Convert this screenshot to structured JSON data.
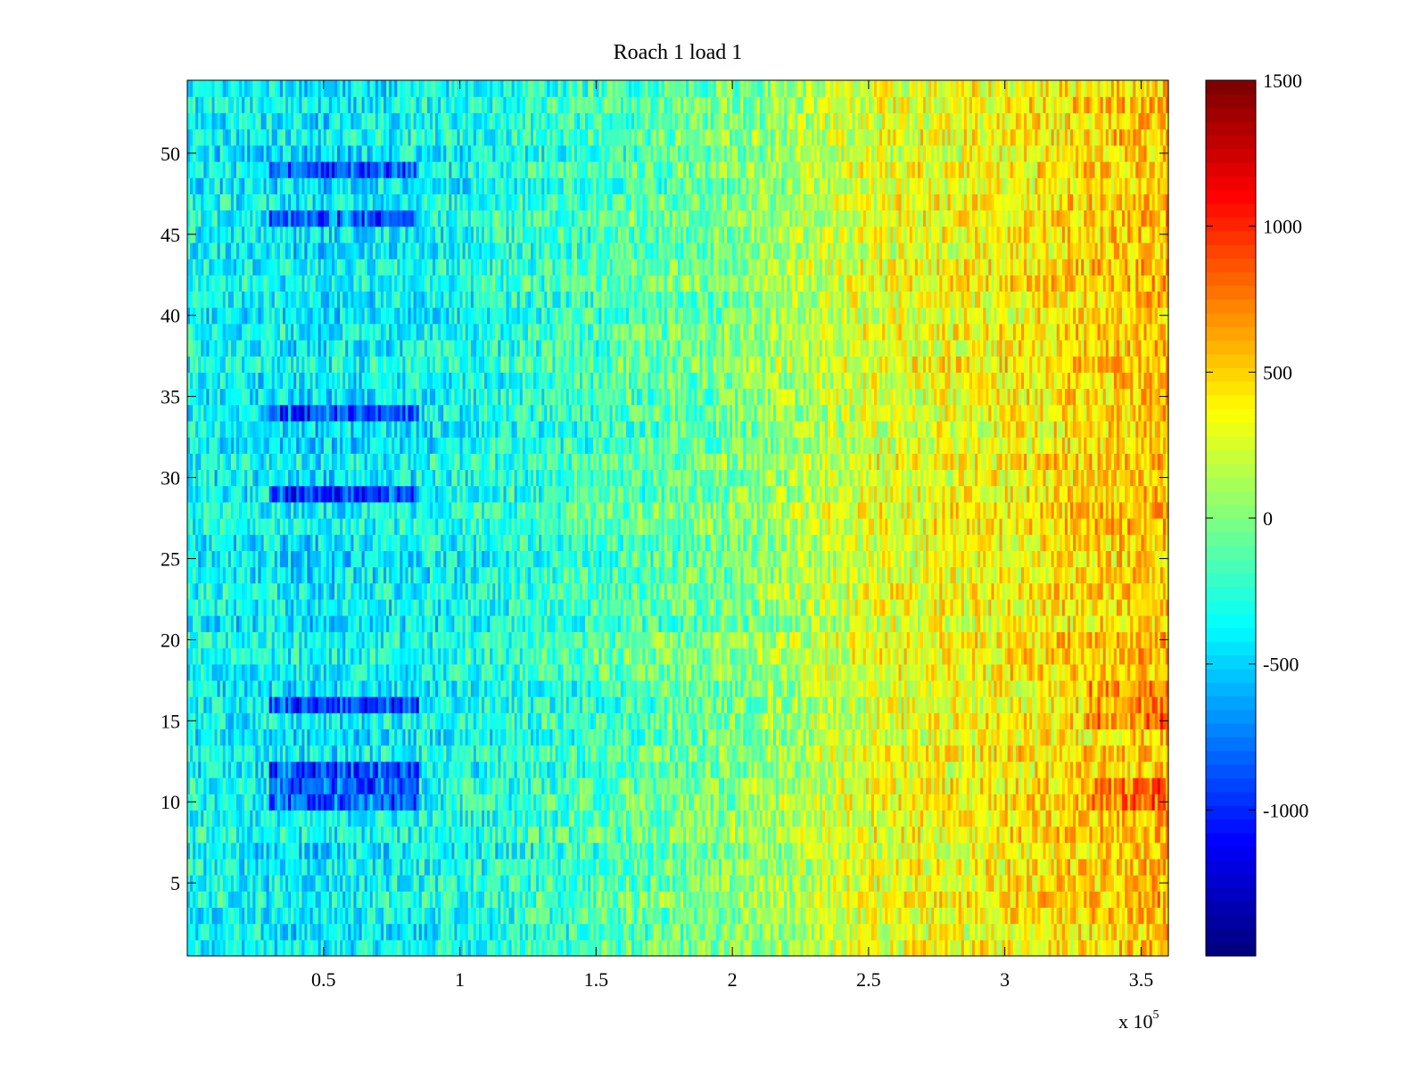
{
  "chart_data": {
    "type": "heatmap",
    "title": "Roach 1 load 1",
    "xlabel": "",
    "ylabel": "",
    "x_multiplier_label": "x 10",
    "x_multiplier_exponent": "5",
    "xlim": [
      0,
      3.6
    ],
    "ylim": [
      0.5,
      54.5
    ],
    "x_ticks": [
      0.5,
      1,
      1.5,
      2,
      2.5,
      3,
      3.5
    ],
    "x_tick_labels": [
      "0.5",
      "1",
      "1.5",
      "2",
      "2.5",
      "3",
      "3.5"
    ],
    "y_ticks": [
      5,
      10,
      15,
      20,
      25,
      30,
      35,
      40,
      45,
      50
    ],
    "y_tick_labels": [
      "5",
      "10",
      "15",
      "20",
      "25",
      "30",
      "35",
      "40",
      "45",
      "50"
    ],
    "rows": 54,
    "columns": 360,
    "colormap": "jet",
    "colorbar": {
      "clim": [
        -1500,
        1500
      ],
      "ticks": [
        1500,
        1000,
        500,
        0,
        -500,
        -1000
      ],
      "tick_labels": [
        "1500",
        "1000",
        "500",
        "0",
        "-500",
        "-1000"
      ]
    },
    "trend_anchors": {
      "x": [
        0,
        0.5,
        1.0,
        1.5,
        2.0,
        2.5,
        3.0,
        3.6
      ],
      "value": [
        -350,
        -430,
        -330,
        -180,
        -20,
        280,
        380,
        560
      ]
    },
    "noise_amplitude": 300,
    "dark_bands": {
      "rows": [
        10,
        11,
        12,
        16,
        29,
        34,
        46,
        49
      ],
      "x_range": [
        0.3,
        0.85
      ],
      "offset": -550
    },
    "hot_bands": {
      "rows": [
        10,
        11,
        15,
        16,
        17
      ],
      "x_range": [
        3.3,
        3.6
      ],
      "offset": 250
    }
  }
}
